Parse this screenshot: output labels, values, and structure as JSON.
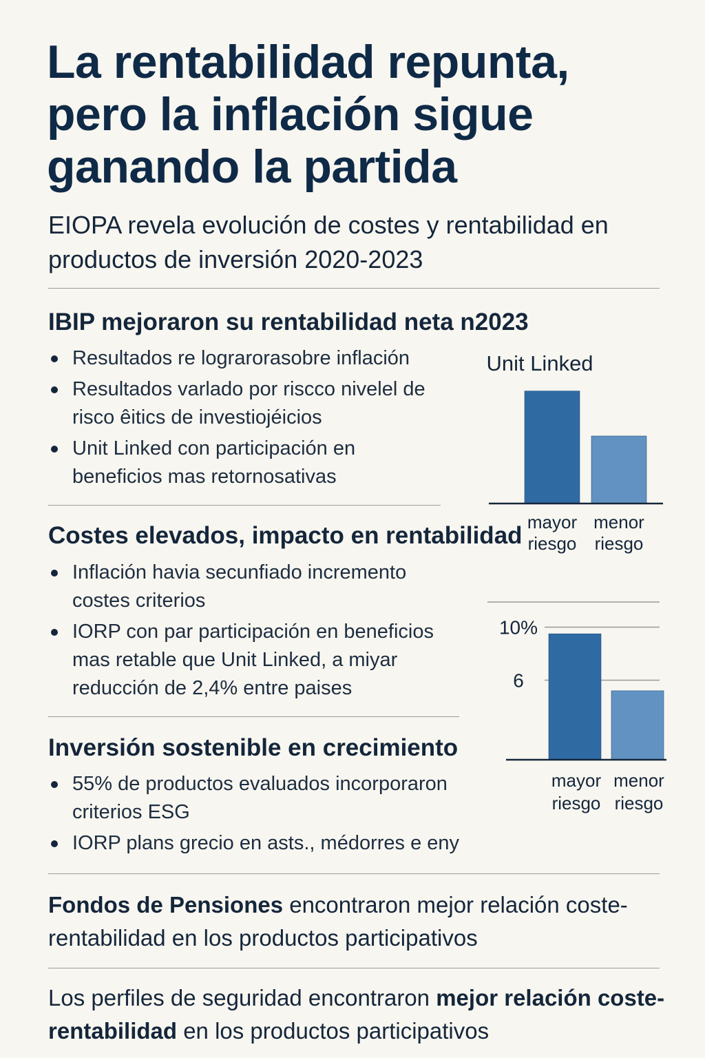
{
  "header": {
    "title": "La rentabilidad repunta, pero la inflación sigue ganando la partida",
    "subtitle": "EIOPA revela evolución de costes y rentabilidad en productos de inversión 2020-2023"
  },
  "sections": [
    {
      "heading": "IBIP mejoraron su rentabilidad neta n2023",
      "bullets": [
        "Resultados re lograrorasobre inflación",
        "Resultados varlado por riscco nivelel de risco êitics de investiojéicios",
        "Unit Linked con participación en beneficios mas retornosativas"
      ]
    },
    {
      "heading": "Costes elevados, impacto en rentabilidad",
      "bullets": [
        "Inflación havia secunfiado incremento costes criterios",
        "IORP con par participación en beneficios mas retable que Unit Linked, a miyar reducción de 2,4% entre paises"
      ]
    },
    {
      "heading": "Inversión sostenible en crecimiento",
      "bullets": [
        "55% de productos evaluados incorporaron criterios ESG",
        "IORP plans grecio en asts., médorres e eny"
      ]
    }
  ],
  "footer": {
    "p1_bold": "Fondos de Pensiones",
    "p1_rest": " encontraron mejor relación coste-rentabilidad en los productos participativos",
    "p2_start": "Los perfiles de seguridad encontraron ",
    "p2_bold": "mejor relación coste-rentabilidad",
    "p2_end": " en los productos participativos"
  },
  "colors": {
    "bar_dark": "#2f6aa3",
    "bar_light": "#6192c2",
    "title": "#0f2a47"
  },
  "chart_data": [
    {
      "type": "bar",
      "title": "Unit Linked",
      "categories": [
        "mayor riesgo",
        "menor riesgo"
      ],
      "category_lines": [
        [
          "mayor",
          "riesgo"
        ],
        [
          "menor",
          "riesgo"
        ]
      ],
      "values": [
        10,
        6
      ],
      "ylim": [
        0,
        12
      ],
      "grid": false
    },
    {
      "type": "bar",
      "title": "",
      "categories": [
        "mayor riesgo",
        "menor riesgo"
      ],
      "category_lines": [
        [
          "mayor",
          "riesgo"
        ],
        [
          "menor",
          "riesgo"
        ]
      ],
      "values": [
        9.5,
        5.2
      ],
      "ylim": [
        0,
        12
      ],
      "yticks": [
        {
          "value": 6,
          "label": "6"
        },
        {
          "value": 10,
          "label": "10%"
        }
      ],
      "grid": true
    }
  ]
}
